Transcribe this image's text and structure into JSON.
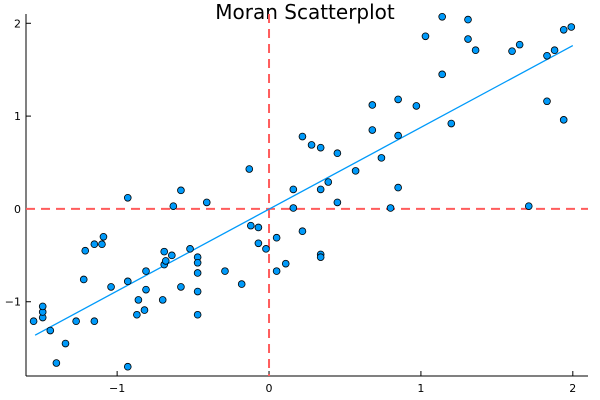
{
  "chart_data": {
    "type": "scatter",
    "title": "Moran Scatterplot",
    "xlabel": "",
    "ylabel": "",
    "xlim": [
      -1.6,
      2.1
    ],
    "ylim": [
      -1.8,
      2.1
    ],
    "x_ticks": [
      -1,
      0,
      1,
      2
    ],
    "x_tick_labels": [
      "−1",
      "0",
      "1",
      "2"
    ],
    "y_ticks": [
      -1,
      0,
      1,
      2
    ],
    "y_tick_labels": [
      "−1",
      "0",
      "1",
      "2"
    ],
    "grid": false,
    "legend": "none",
    "colors": {
      "points": "#009AFA",
      "point_outline": "#000000",
      "fit_line": "#009AFA",
      "reference_lines": "#FF5C5C"
    },
    "reference_lines": {
      "x": 0,
      "y": 0,
      "style": "dashed"
    },
    "fit_line": {
      "x": [
        -1.54,
        2.0
      ],
      "y": [
        -1.36,
        1.76
      ]
    },
    "points": [
      {
        "x": -1.55,
        "y": -1.21
      },
      {
        "x": -1.49,
        "y": -1.17
      },
      {
        "x": -1.49,
        "y": -1.11
      },
      {
        "x": -1.49,
        "y": -1.05
      },
      {
        "x": -1.44,
        "y": -1.31
      },
      {
        "x": -1.4,
        "y": -1.66
      },
      {
        "x": -1.34,
        "y": -1.45
      },
      {
        "x": -1.27,
        "y": -1.21
      },
      {
        "x": -1.22,
        "y": -0.76
      },
      {
        "x": -1.21,
        "y": -0.45
      },
      {
        "x": -1.15,
        "y": -1.21
      },
      {
        "x": -1.15,
        "y": -0.38
      },
      {
        "x": -1.1,
        "y": -0.38
      },
      {
        "x": -1.09,
        "y": -0.3
      },
      {
        "x": -1.04,
        "y": -0.84
      },
      {
        "x": -0.93,
        "y": -0.78
      },
      {
        "x": -0.93,
        "y": 0.12
      },
      {
        "x": -0.93,
        "y": -1.7
      },
      {
        "x": -0.87,
        "y": -1.14
      },
      {
        "x": -0.86,
        "y": -0.98
      },
      {
        "x": -0.82,
        "y": -1.09
      },
      {
        "x": -0.81,
        "y": -0.87
      },
      {
        "x": -0.81,
        "y": -0.67
      },
      {
        "x": -0.7,
        "y": -0.98
      },
      {
        "x": -0.69,
        "y": -0.46
      },
      {
        "x": -0.69,
        "y": -0.6
      },
      {
        "x": -0.68,
        "y": -0.56
      },
      {
        "x": -0.64,
        "y": -0.5
      },
      {
        "x": -0.63,
        "y": 0.03
      },
      {
        "x": -0.58,
        "y": -0.84
      },
      {
        "x": -0.58,
        "y": 0.2
      },
      {
        "x": -0.52,
        "y": -0.43
      },
      {
        "x": -0.47,
        "y": -0.52
      },
      {
        "x": -0.47,
        "y": -0.58
      },
      {
        "x": -0.47,
        "y": -0.69
      },
      {
        "x": -0.47,
        "y": -0.89
      },
      {
        "x": -0.47,
        "y": -1.14
      },
      {
        "x": -0.41,
        "y": 0.07
      },
      {
        "x": -0.29,
        "y": -0.67
      },
      {
        "x": -0.18,
        "y": -0.81
      },
      {
        "x": -0.13,
        "y": 0.43
      },
      {
        "x": -0.12,
        "y": -0.18
      },
      {
        "x": -0.07,
        "y": -0.37
      },
      {
        "x": -0.07,
        "y": -0.2
      },
      {
        "x": -0.02,
        "y": -0.43
      },
      {
        "x": 0.05,
        "y": -0.31
      },
      {
        "x": 0.05,
        "y": -0.67
      },
      {
        "x": 0.11,
        "y": -0.59
      },
      {
        "x": 0.16,
        "y": 0.21
      },
      {
        "x": 0.16,
        "y": 0.01
      },
      {
        "x": 0.22,
        "y": 0.78
      },
      {
        "x": 0.22,
        "y": -0.24
      },
      {
        "x": 0.28,
        "y": 0.69
      },
      {
        "x": 0.34,
        "y": 0.66
      },
      {
        "x": 0.34,
        "y": 0.21
      },
      {
        "x": 0.34,
        "y": -0.49
      },
      {
        "x": 0.34,
        "y": -0.52
      },
      {
        "x": 0.39,
        "y": 0.29
      },
      {
        "x": 0.45,
        "y": 0.07
      },
      {
        "x": 0.45,
        "y": 0.6
      },
      {
        "x": 0.57,
        "y": 0.41
      },
      {
        "x": 0.68,
        "y": 1.12
      },
      {
        "x": 0.68,
        "y": 0.85
      },
      {
        "x": 0.74,
        "y": 0.55
      },
      {
        "x": 0.8,
        "y": 0.01
      },
      {
        "x": 0.85,
        "y": 1.18
      },
      {
        "x": 0.85,
        "y": 0.79
      },
      {
        "x": 0.85,
        "y": 0.23
      },
      {
        "x": 0.97,
        "y": 1.11
      },
      {
        "x": 1.03,
        "y": 1.86
      },
      {
        "x": 1.14,
        "y": 1.45
      },
      {
        "x": 1.14,
        "y": 2.07
      },
      {
        "x": 1.2,
        "y": 0.92
      },
      {
        "x": 1.31,
        "y": 2.04
      },
      {
        "x": 1.31,
        "y": 1.83
      },
      {
        "x": 1.36,
        "y": 1.71
      },
      {
        "x": 1.6,
        "y": 1.7
      },
      {
        "x": 1.65,
        "y": 1.77
      },
      {
        "x": 1.71,
        "y": 0.03
      },
      {
        "x": 1.83,
        "y": 1.65
      },
      {
        "x": 1.83,
        "y": 1.16
      },
      {
        "x": 1.88,
        "y": 1.71
      },
      {
        "x": 1.94,
        "y": 1.93
      },
      {
        "x": 1.94,
        "y": 0.96
      },
      {
        "x": 1.99,
        "y": 1.96
      }
    ]
  }
}
